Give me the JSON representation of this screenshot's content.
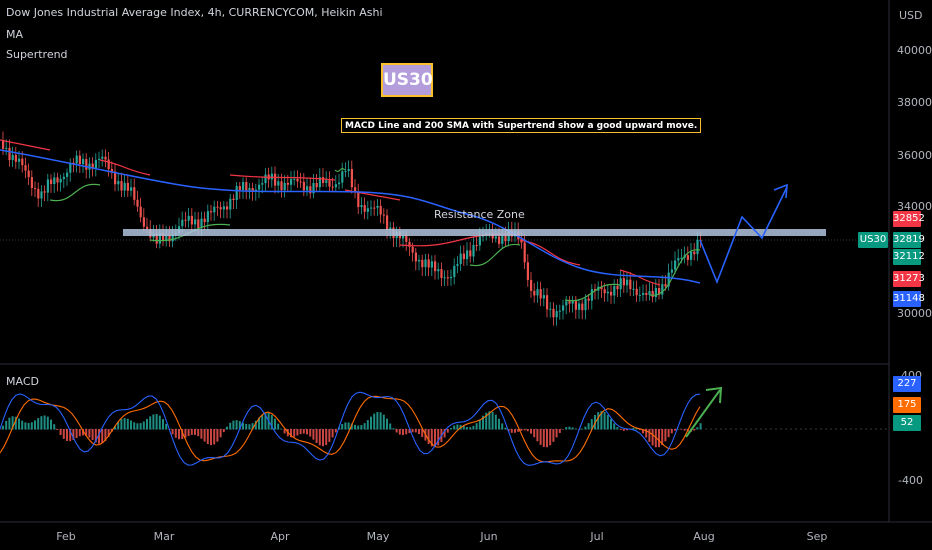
{
  "header": {
    "title": "Dow Jones Industrial Average Index, 4h, CURRENCYCOM, Heikin Ashi",
    "indicator_1": "MA",
    "indicator_2": "Supertrend"
  },
  "annotations": {
    "badge": "US30",
    "note": "MACD Line and 200 SMA with Supertrend show a good upward move.",
    "zone": "Resistance Zone"
  },
  "price_axis": {
    "currency": "USD",
    "ticks": [
      "40000",
      "38000",
      "36000",
      "34000",
      "30000"
    ]
  },
  "price_tags": {
    "symbol": "US30",
    "p1": "32852",
    "p2": "32819",
    "p3": "32112",
    "p4": "31273",
    "p5": "31148"
  },
  "macd_panel": {
    "label": "MACD",
    "tick_top": "400",
    "tick_bottom": "-400",
    "tag_1": "227",
    "tag_2": "175",
    "tag_3": "52"
  },
  "time_axis": [
    "Feb",
    "Mar",
    "Apr",
    "May",
    "Jun",
    "Jul",
    "Aug",
    "Sep"
  ],
  "colors": {
    "up": "#26a69a",
    "down": "#ef5350",
    "ma": "#2962ff",
    "supertrend_up": "#4caf50",
    "supertrend_down": "#f23645",
    "macd_line": "#2962ff",
    "signal_line": "#ff6d00",
    "zone": "#b0c4de",
    "arrow_blue": "#2962ff",
    "arrow_green": "#4caf50"
  }
}
